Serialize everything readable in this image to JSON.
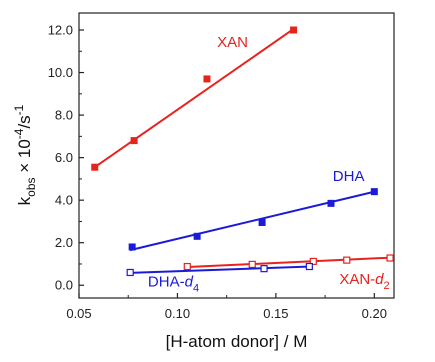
{
  "chart_data": {
    "type": "scatter",
    "title": "",
    "xlabel": "[H-atom donor] / M",
    "ylabel": {
      "k": "k",
      "sub": "obs",
      "mid": " × 10",
      "sup1": "-4",
      "end": "/s",
      "sup2": "-1"
    },
    "xlim": [
      0.05,
      0.21
    ],
    "ylim": [
      -0.6,
      12.8
    ],
    "xticks": [
      0.05,
      0.1,
      0.15,
      0.2
    ],
    "xtick_labels": [
      "0.05",
      "0.10",
      "0.15",
      "0.20"
    ],
    "yticks": [
      0.0,
      2.0,
      4.0,
      6.0,
      8.0,
      10.0,
      12.0
    ],
    "ytick_labels": [
      "0.0",
      "2.0",
      "4.0",
      "6.0",
      "8.0",
      "10.0",
      "12.0"
    ],
    "grid": false,
    "legend": "none",
    "series": [
      {
        "name": "XAN",
        "label": {
          "main": "XAN",
          "sub": ""
        },
        "color": "#e8221d",
        "marker": "filled-square",
        "x": [
          0.058,
          0.078,
          0.115,
          0.159
        ],
        "y": [
          5.55,
          6.8,
          9.7,
          12.0
        ],
        "fit": [
          [
            0.058,
            5.55
          ],
          [
            0.159,
            12.05
          ]
        ]
      },
      {
        "name": "DHA",
        "label": {
          "main": "DHA",
          "sub": ""
        },
        "color": "#1a1ad9",
        "marker": "filled-square",
        "x": [
          0.077,
          0.11,
          0.143,
          0.178,
          0.2
        ],
        "y": [
          1.8,
          2.3,
          2.95,
          3.85,
          4.4
        ],
        "fit": [
          [
            0.076,
            1.65
          ],
          [
            0.201,
            4.42
          ]
        ]
      },
      {
        "name": "XAN-d2",
        "label": {
          "main": "XAN-",
          "sub": "2"
        },
        "color": "#e8221d",
        "marker": "open-square",
        "x": [
          0.105,
          0.138,
          0.169,
          0.186,
          0.208
        ],
        "y": [
          0.88,
          0.98,
          1.12,
          1.18,
          1.28
        ],
        "fit": [
          [
            0.104,
            0.85
          ],
          [
            0.209,
            1.3
          ]
        ]
      },
      {
        "name": "DHA-d4",
        "label": {
          "main": "DHA-",
          "sub": "4"
        },
        "color": "#1a1ad9",
        "marker": "open-square",
        "x": [
          0.076,
          0.144,
          0.167
        ],
        "y": [
          0.6,
          0.78,
          0.88
        ],
        "fit": [
          [
            0.076,
            0.58
          ],
          [
            0.168,
            0.88
          ]
        ]
      }
    ]
  }
}
